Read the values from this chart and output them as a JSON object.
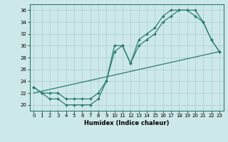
{
  "xlabel": "Humidex (Indice chaleur)",
  "bg_color": "#cde8e8",
  "line_color": "#2d7d6e",
  "grid_color": "#aacfcf",
  "xlim": [
    -0.5,
    23.5
  ],
  "ylim": [
    19,
    37
  ],
  "yticks": [
    20,
    22,
    24,
    26,
    28,
    30,
    32,
    34,
    36
  ],
  "xticks": [
    0,
    1,
    2,
    3,
    4,
    5,
    6,
    7,
    8,
    9,
    10,
    11,
    12,
    13,
    14,
    15,
    16,
    17,
    18,
    19,
    20,
    21,
    22,
    23
  ],
  "series1_x": [
    0,
    1,
    2,
    3,
    4,
    5,
    6,
    7,
    8,
    9,
    10,
    11,
    12,
    13,
    14,
    15,
    16,
    17,
    18,
    19,
    20,
    21,
    22,
    23
  ],
  "series1_y": [
    23,
    22,
    21,
    21,
    20,
    20,
    20,
    20,
    21,
    24,
    30,
    30,
    27,
    31,
    32,
    33,
    35,
    36,
    36,
    36,
    35,
    34,
    31,
    29
  ],
  "series2_x": [
    0,
    1,
    2,
    3,
    4,
    5,
    6,
    7,
    8,
    9,
    10,
    11,
    12,
    13,
    14,
    15,
    16,
    17,
    18,
    19,
    20,
    21,
    22,
    23
  ],
  "series2_y": [
    23,
    22,
    22,
    22,
    21,
    21,
    21,
    21,
    22,
    24,
    29,
    30,
    27,
    30,
    31,
    32,
    34,
    35,
    36,
    36,
    36,
    34,
    31,
    29
  ],
  "series3_x": [
    0,
    23
  ],
  "series3_y": [
    22,
    29
  ],
  "xlabel_fontsize": 6,
  "tick_fontsize": 5
}
